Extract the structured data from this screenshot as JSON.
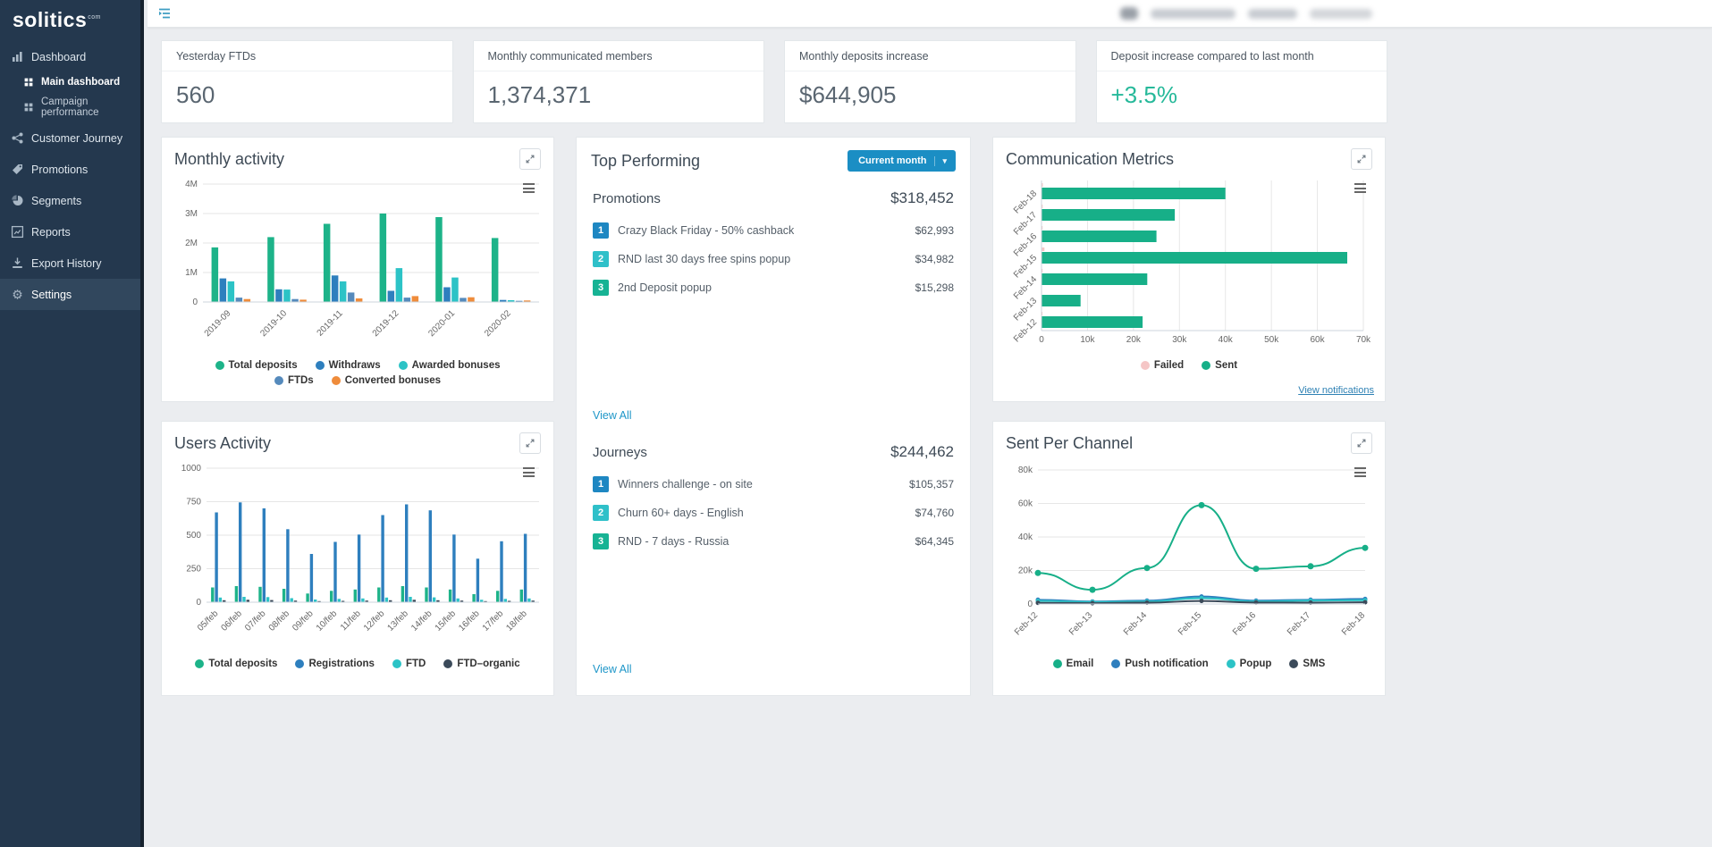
{
  "sidebar": {
    "logo": "solitics",
    "logo_suffix": "com",
    "items": [
      {
        "label": "Dashboard",
        "icon": "bar-chart"
      },
      {
        "label": "Main dashboard",
        "icon": "grid",
        "sub": true,
        "active": true
      },
      {
        "label": "Campaign performance",
        "icon": "grid",
        "sub": true
      },
      {
        "label": "Customer Journey",
        "icon": "share"
      },
      {
        "label": "Promotions",
        "icon": "tag"
      },
      {
        "label": "Segments",
        "icon": "pie"
      },
      {
        "label": "Reports",
        "icon": "report"
      },
      {
        "label": "Export History",
        "icon": "export"
      },
      {
        "label": "Settings",
        "icon": "gear",
        "highlight": true
      }
    ]
  },
  "kpis": [
    {
      "label": "Yesterday FTDs",
      "value": "560"
    },
    {
      "label": "Monthly communicated members",
      "value": "1,374,371"
    },
    {
      "label": "Monthly deposits increase",
      "value": "$644,905"
    },
    {
      "label": "Deposit increase compared to last month",
      "value": "+3.5%",
      "color": "#26b99a"
    }
  ],
  "top_performing": {
    "title": "Top Performing",
    "dropdown": {
      "value": "Current month"
    },
    "rank_colors": [
      "#1e87c2",
      "#2fc0c9",
      "#17b394"
    ],
    "sections": [
      {
        "title": "Promotions",
        "total": "$318,452",
        "view_all": "View All",
        "items": [
          {
            "rank": "1",
            "label": "Crazy Black Friday - 50% cashback",
            "value": "$62,993"
          },
          {
            "rank": "2",
            "label": "RND last 30 days free spins popup",
            "value": "$34,982"
          },
          {
            "rank": "3",
            "label": "2nd Deposit popup",
            "value": "$15,298"
          }
        ]
      },
      {
        "title": "Journeys",
        "total": "$244,462",
        "view_all": "View All",
        "items": [
          {
            "rank": "1",
            "label": "Winners challenge - on site",
            "value": "$105,357"
          },
          {
            "rank": "2",
            "label": "Churn 60+ days - English",
            "value": "$74,760"
          },
          {
            "rank": "3",
            "label": "RND - 7 days - Russia",
            "value": "$64,345"
          }
        ]
      }
    ]
  },
  "charts": {
    "monthly_activity": {
      "type": "grouped_bar",
      "title": "Monthly activity",
      "categories": [
        "2019-09",
        "2019-10",
        "2019-11",
        "2019-12",
        "2020-01",
        "2020-02"
      ],
      "y_max": 4000000,
      "y_ticks": [
        {
          "v": 0,
          "label": "0"
        },
        {
          "v": 1000000,
          "label": "1M"
        },
        {
          "v": 2000000,
          "label": "2M"
        },
        {
          "v": 3000000,
          "label": "3M"
        },
        {
          "v": 4000000,
          "label": "4M"
        }
      ],
      "series": [
        {
          "name": "Total deposits",
          "color": "#1db389",
          "values": [
            1850000,
            2200000,
            2650000,
            3000000,
            2880000,
            2170000
          ]
        },
        {
          "name": "Withdraws",
          "color": "#2e7fbe",
          "values": [
            800000,
            430000,
            900000,
            380000,
            500000,
            70000
          ]
        },
        {
          "name": "Awarded bonuses",
          "color": "#2cc3c6",
          "values": [
            700000,
            420000,
            700000,
            1150000,
            830000,
            60000
          ]
        },
        {
          "name": "FTDs",
          "color": "#558abc",
          "values": [
            150000,
            100000,
            320000,
            150000,
            140000,
            40000
          ]
        },
        {
          "name": "Converted bonuses",
          "color": "#ef8c3b",
          "values": [
            100000,
            80000,
            120000,
            200000,
            160000,
            50000
          ]
        }
      ]
    },
    "users_activity": {
      "type": "grouped_bar",
      "title": "Users Activity",
      "categories": [
        "05/feb",
        "06/feb",
        "07/feb",
        "08/feb",
        "09/feb",
        "10/feb",
        "11/feb",
        "12/feb",
        "13/feb",
        "14/feb",
        "15/feb",
        "16/feb",
        "17/feb",
        "18/feb"
      ],
      "y_max": 1000,
      "y_ticks": [
        {
          "v": 0,
          "label": "0"
        },
        {
          "v": 250,
          "label": "250"
        },
        {
          "v": 500,
          "label": "500"
        },
        {
          "v": 750,
          "label": "750"
        },
        {
          "v": 1000,
          "label": "1000"
        }
      ],
      "series": [
        {
          "name": "Total deposits",
          "color": "#1db389",
          "values": [
            110,
            120,
            115,
            100,
            65,
            85,
            95,
            110,
            120,
            110,
            95,
            60,
            85,
            95
          ]
        },
        {
          "name": "Registrations",
          "color": "#2e7fbe",
          "values": [
            670,
            745,
            700,
            545,
            360,
            450,
            505,
            650,
            730,
            685,
            505,
            325,
            455,
            510
          ]
        },
        {
          "name": "FTD",
          "color": "#2cc3c6",
          "values": [
            35,
            40,
            38,
            30,
            20,
            25,
            28,
            35,
            40,
            36,
            28,
            18,
            25,
            28
          ]
        },
        {
          "name": "FTD–organic",
          "color": "#3b4a5a",
          "values": [
            15,
            18,
            16,
            12,
            8,
            10,
            12,
            15,
            18,
            15,
            12,
            8,
            10,
            12
          ]
        }
      ]
    },
    "communication_metrics": {
      "type": "hbar",
      "title": "Communication Metrics",
      "link": "View notifications",
      "categories": [
        "Feb-18",
        "Feb-17",
        "Feb-16",
        "Feb-15",
        "Feb-14",
        "Feb-13",
        "Feb-12"
      ],
      "x_max": 70000,
      "x_ticks": [
        {
          "v": 0,
          "label": "0"
        },
        {
          "v": 10000,
          "label": "10k"
        },
        {
          "v": 20000,
          "label": "20k"
        },
        {
          "v": 30000,
          "label": "30k"
        },
        {
          "v": 40000,
          "label": "40k"
        },
        {
          "v": 50000,
          "label": "50k"
        },
        {
          "v": 60000,
          "label": "60k"
        },
        {
          "v": 70000,
          "label": "70k"
        }
      ],
      "series": [
        {
          "name": "Failed",
          "color": "#f5c6c6",
          "values": [
            300,
            250,
            240,
            650,
            230,
            120,
            210
          ]
        },
        {
          "name": "Sent",
          "color": "#17af88",
          "values": [
            40000,
            29000,
            25000,
            66500,
            23000,
            8500,
            22000
          ]
        }
      ]
    },
    "sent_per_channel": {
      "type": "line",
      "title": "Sent Per Channel",
      "categories": [
        "Feb-12",
        "Feb-13",
        "Feb-14",
        "Feb-15",
        "Feb-16",
        "Feb-17",
        "Feb-18"
      ],
      "y_max": 80000,
      "y_ticks": [
        {
          "v": 0,
          "label": "0"
        },
        {
          "v": 20000,
          "label": "20k"
        },
        {
          "v": 40000,
          "label": "40k"
        },
        {
          "v": 60000,
          "label": "60k"
        },
        {
          "v": 80000,
          "label": "80k"
        }
      ],
      "series": [
        {
          "name": "Email",
          "color": "#17af88",
          "values": [
            18500,
            8500,
            21500,
            59000,
            21000,
            22500,
            33500
          ]
        },
        {
          "name": "Push notification",
          "color": "#2e7fbe",
          "values": [
            2500,
            1500,
            2000,
            4500,
            2000,
            2500,
            3000
          ]
        },
        {
          "name": "Popup",
          "color": "#2cc3c6",
          "values": [
            1800,
            1200,
            1500,
            3500,
            1500,
            2000,
            2200
          ]
        },
        {
          "name": "SMS",
          "color": "#3b4a5a",
          "values": [
            700,
            500,
            800,
            1800,
            900,
            800,
            1000
          ]
        }
      ]
    }
  }
}
